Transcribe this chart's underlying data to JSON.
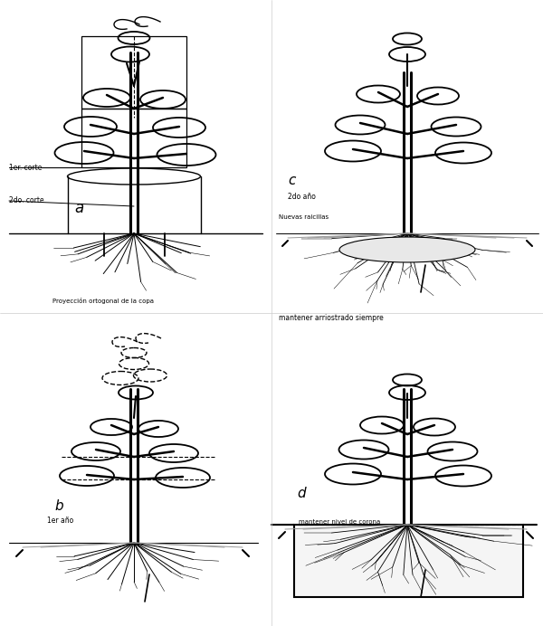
{
  "bg_color": "#ffffff",
  "line_color": "#000000",
  "gray_color": "#999999",
  "label_a": "a",
  "label_b": "b",
  "label_c": "c",
  "label_d": "d",
  "text_1er_corte": "1er. corte",
  "text_2do_corte": "2do. corte",
  "text_proyeccion": "Proyección ortogonal de la copa",
  "text_1er_ano": "1er año",
  "text_2do_ano": "2do año",
  "text_nuevas_raicillas": "Nuevas raicillas",
  "text_mantener_arriostrado": "mantener arriostrado siempre",
  "text_mantener_nivel": "mantener nivel de corona"
}
